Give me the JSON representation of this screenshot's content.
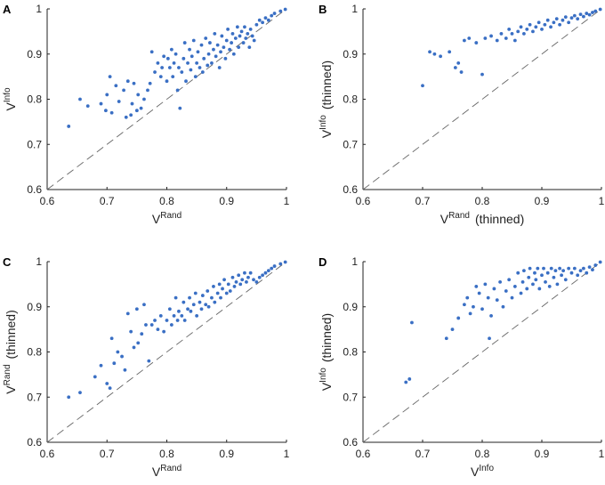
{
  "colors": {
    "points": "#3a6fc4",
    "axes": "#222222",
    "diagonal": "#666666"
  },
  "chart_data": [
    {
      "type": "scatter",
      "panel_label": "A",
      "xlabel": {
        "base": "V",
        "sup": "Rand",
        "suffix": ""
      },
      "ylabel": {
        "base": "V",
        "sup": "Info",
        "suffix": ""
      },
      "xlim": [
        0.6,
        1
      ],
      "ylim": [
        0.6,
        1
      ],
      "xticks": [
        "0.6",
        "0.7",
        "0.8",
        "0.9",
        "1"
      ],
      "yticks": [
        "0.6",
        "0.7",
        "0.8",
        "0.9",
        "1"
      ],
      "reference_line": "y = x (dashed)",
      "points": [
        [
          0.636,
          0.74
        ],
        [
          0.655,
          0.8
        ],
        [
          0.668,
          0.785
        ],
        [
          0.69,
          0.79
        ],
        [
          0.698,
          0.775
        ],
        [
          0.7,
          0.81
        ],
        [
          0.705,
          0.85
        ],
        [
          0.708,
          0.77
        ],
        [
          0.715,
          0.83
        ],
        [
          0.72,
          0.795
        ],
        [
          0.728,
          0.82
        ],
        [
          0.732,
          0.76
        ],
        [
          0.735,
          0.84
        ],
        [
          0.74,
          0.765
        ],
        [
          0.742,
          0.79
        ],
        [
          0.745,
          0.835
        ],
        [
          0.75,
          0.775
        ],
        [
          0.752,
          0.81
        ],
        [
          0.757,
          0.78
        ],
        [
          0.762,
          0.8
        ],
        [
          0.768,
          0.82
        ],
        [
          0.772,
          0.835
        ],
        [
          0.775,
          0.905
        ],
        [
          0.78,
          0.86
        ],
        [
          0.785,
          0.88
        ],
        [
          0.79,
          0.85
        ],
        [
          0.792,
          0.87
        ],
        [
          0.795,
          0.895
        ],
        [
          0.8,
          0.84
        ],
        [
          0.802,
          0.89
        ],
        [
          0.805,
          0.87
        ],
        [
          0.808,
          0.91
        ],
        [
          0.81,
          0.85
        ],
        [
          0.812,
          0.88
        ],
        [
          0.815,
          0.9
        ],
        [
          0.818,
          0.82
        ],
        [
          0.82,
          0.87
        ],
        [
          0.822,
          0.78
        ],
        [
          0.825,
          0.86
        ],
        [
          0.828,
          0.89
        ],
        [
          0.83,
          0.925
        ],
        [
          0.832,
          0.84
        ],
        [
          0.835,
          0.88
        ],
        [
          0.838,
          0.91
        ],
        [
          0.84,
          0.865
        ],
        [
          0.842,
          0.895
        ],
        [
          0.845,
          0.93
        ],
        [
          0.848,
          0.85
        ],
        [
          0.85,
          0.88
        ],
        [
          0.852,
          0.905
        ],
        [
          0.855,
          0.87
        ],
        [
          0.858,
          0.92
        ],
        [
          0.86,
          0.86
        ],
        [
          0.862,
          0.89
        ],
        [
          0.865,
          0.935
        ],
        [
          0.868,
          0.875
        ],
        [
          0.87,
          0.9
        ],
        [
          0.872,
          0.925
        ],
        [
          0.875,
          0.88
        ],
        [
          0.878,
          0.91
        ],
        [
          0.88,
          0.945
        ],
        [
          0.882,
          0.895
        ],
        [
          0.885,
          0.92
        ],
        [
          0.888,
          0.87
        ],
        [
          0.89,
          0.905
        ],
        [
          0.892,
          0.94
        ],
        [
          0.895,
          0.915
        ],
        [
          0.898,
          0.89
        ],
        [
          0.9,
          0.93
        ],
        [
          0.902,
          0.955
        ],
        [
          0.905,
          0.91
        ],
        [
          0.908,
          0.925
        ],
        [
          0.91,
          0.945
        ],
        [
          0.912,
          0.9
        ],
        [
          0.915,
          0.935
        ],
        [
          0.918,
          0.96
        ],
        [
          0.92,
          0.915
        ],
        [
          0.922,
          0.94
        ],
        [
          0.925,
          0.95
        ],
        [
          0.928,
          0.925
        ],
        [
          0.93,
          0.96
        ],
        [
          0.932,
          0.935
        ],
        [
          0.935,
          0.945
        ],
        [
          0.938,
          0.915
        ],
        [
          0.94,
          0.955
        ],
        [
          0.943,
          0.94
        ],
        [
          0.946,
          0.93
        ],
        [
          0.95,
          0.965
        ],
        [
          0.955,
          0.975
        ],
        [
          0.96,
          0.97
        ],
        [
          0.965,
          0.98
        ],
        [
          0.97,
          0.975
        ],
        [
          0.975,
          0.985
        ],
        [
          0.98,
          0.99
        ],
        [
          0.99,
          0.995
        ],
        [
          0.998,
          0.999
        ]
      ]
    },
    {
      "type": "scatter",
      "panel_label": "B",
      "xlabel": {
        "base": "V",
        "sup": "Rand",
        "suffix": "(thinned)"
      },
      "ylabel": {
        "base": "V",
        "sup": "Info",
        "suffix": "(thinned)"
      },
      "xlim": [
        0.6,
        1
      ],
      "ylim": [
        0.6,
        1
      ],
      "xticks": [
        "0.6",
        "0.7",
        "0.8",
        "0.9",
        "1"
      ],
      "yticks": [
        "0.6",
        "0.7",
        "0.8",
        "0.9",
        "1"
      ],
      "reference_line": "y = x (dashed)",
      "points": [
        [
          0.7,
          0.83
        ],
        [
          0.712,
          0.905
        ],
        [
          0.72,
          0.9
        ],
        [
          0.73,
          0.895
        ],
        [
          0.745,
          0.905
        ],
        [
          0.755,
          0.87
        ],
        [
          0.76,
          0.88
        ],
        [
          0.765,
          0.86
        ],
        [
          0.77,
          0.93
        ],
        [
          0.778,
          0.935
        ],
        [
          0.79,
          0.925
        ],
        [
          0.8,
          0.855
        ],
        [
          0.805,
          0.935
        ],
        [
          0.815,
          0.94
        ],
        [
          0.825,
          0.93
        ],
        [
          0.832,
          0.945
        ],
        [
          0.84,
          0.935
        ],
        [
          0.845,
          0.955
        ],
        [
          0.85,
          0.945
        ],
        [
          0.855,
          0.93
        ],
        [
          0.86,
          0.95
        ],
        [
          0.865,
          0.96
        ],
        [
          0.87,
          0.945
        ],
        [
          0.875,
          0.955
        ],
        [
          0.88,
          0.965
        ],
        [
          0.885,
          0.95
        ],
        [
          0.89,
          0.96
        ],
        [
          0.895,
          0.97
        ],
        [
          0.9,
          0.955
        ],
        [
          0.905,
          0.965
        ],
        [
          0.91,
          0.975
        ],
        [
          0.915,
          0.96
        ],
        [
          0.92,
          0.97
        ],
        [
          0.925,
          0.978
        ],
        [
          0.93,
          0.965
        ],
        [
          0.935,
          0.975
        ],
        [
          0.94,
          0.982
        ],
        [
          0.945,
          0.97
        ],
        [
          0.95,
          0.98
        ],
        [
          0.955,
          0.985
        ],
        [
          0.96,
          0.978
        ],
        [
          0.965,
          0.988
        ],
        [
          0.97,
          0.983
        ],
        [
          0.975,
          0.99
        ],
        [
          0.98,
          0.987
        ],
        [
          0.985,
          0.992
        ],
        [
          0.99,
          0.995
        ],
        [
          0.998,
          0.999
        ]
      ]
    },
    {
      "type": "scatter",
      "panel_label": "C",
      "xlabel": {
        "base": "V",
        "sup": "Rand",
        "suffix": ""
      },
      "ylabel": {
        "base": "V",
        "sup": "Rand",
        "suffix": "(thinned)"
      },
      "xlim": [
        0.6,
        1
      ],
      "ylim": [
        0.6,
        1
      ],
      "xticks": [
        "0.6",
        "0.7",
        "0.8",
        "0.9",
        "1"
      ],
      "yticks": [
        "0.6",
        "0.7",
        "0.8",
        "0.9",
        "1"
      ],
      "reference_line": "y = x (dashed)",
      "points": [
        [
          0.636,
          0.7
        ],
        [
          0.655,
          0.71
        ],
        [
          0.68,
          0.745
        ],
        [
          0.69,
          0.77
        ],
        [
          0.7,
          0.73
        ],
        [
          0.705,
          0.72
        ],
        [
          0.708,
          0.83
        ],
        [
          0.712,
          0.775
        ],
        [
          0.718,
          0.8
        ],
        [
          0.725,
          0.79
        ],
        [
          0.73,
          0.76
        ],
        [
          0.735,
          0.885
        ],
        [
          0.74,
          0.845
        ],
        [
          0.745,
          0.81
        ],
        [
          0.75,
          0.895
        ],
        [
          0.752,
          0.82
        ],
        [
          0.758,
          0.84
        ],
        [
          0.762,
          0.905
        ],
        [
          0.765,
          0.86
        ],
        [
          0.77,
          0.78
        ],
        [
          0.775,
          0.86
        ],
        [
          0.78,
          0.87
        ],
        [
          0.785,
          0.85
        ],
        [
          0.79,
          0.88
        ],
        [
          0.795,
          0.845
        ],
        [
          0.8,
          0.87
        ],
        [
          0.805,
          0.895
        ],
        [
          0.808,
          0.86
        ],
        [
          0.812,
          0.88
        ],
        [
          0.815,
          0.92
        ],
        [
          0.818,
          0.87
        ],
        [
          0.82,
          0.89
        ],
        [
          0.825,
          0.88
        ],
        [
          0.828,
          0.91
        ],
        [
          0.83,
          0.87
        ],
        [
          0.835,
          0.895
        ],
        [
          0.838,
          0.92
        ],
        [
          0.84,
          0.89
        ],
        [
          0.845,
          0.905
        ],
        [
          0.848,
          0.93
        ],
        [
          0.85,
          0.88
        ],
        [
          0.855,
          0.91
        ],
        [
          0.858,
          0.895
        ],
        [
          0.86,
          0.925
        ],
        [
          0.865,
          0.905
        ],
        [
          0.868,
          0.935
        ],
        [
          0.87,
          0.9
        ],
        [
          0.875,
          0.92
        ],
        [
          0.878,
          0.945
        ],
        [
          0.88,
          0.91
        ],
        [
          0.885,
          0.93
        ],
        [
          0.888,
          0.95
        ],
        [
          0.89,
          0.92
        ],
        [
          0.893,
          0.94
        ],
        [
          0.896,
          0.96
        ],
        [
          0.9,
          0.93
        ],
        [
          0.903,
          0.95
        ],
        [
          0.906,
          0.935
        ],
        [
          0.91,
          0.965
        ],
        [
          0.913,
          0.945
        ],
        [
          0.916,
          0.955
        ],
        [
          0.92,
          0.97
        ],
        [
          0.923,
          0.95
        ],
        [
          0.926,
          0.96
        ],
        [
          0.93,
          0.975
        ],
        [
          0.933,
          0.955
        ],
        [
          0.936,
          0.965
        ],
        [
          0.94,
          0.975
        ],
        [
          0.945,
          0.96
        ],
        [
          0.95,
          0.955
        ],
        [
          0.955,
          0.965
        ],
        [
          0.96,
          0.97
        ],
        [
          0.965,
          0.975
        ],
        [
          0.97,
          0.98
        ],
        [
          0.975,
          0.985
        ],
        [
          0.98,
          0.99
        ],
        [
          0.99,
          0.995
        ],
        [
          0.998,
          0.999
        ]
      ]
    },
    {
      "type": "scatter",
      "panel_label": "D",
      "xlabel": {
        "base": "V",
        "sup": "Info",
        "suffix": ""
      },
      "ylabel": {
        "base": "V",
        "sup": "Info",
        "suffix": "(thinned)"
      },
      "xlim": [
        0.6,
        1
      ],
      "ylim": [
        0.6,
        1
      ],
      "xticks": [
        "0.6",
        "0.7",
        "0.8",
        "0.9",
        "1"
      ],
      "yticks": [
        "0.6",
        "0.7",
        "0.8",
        "0.9",
        "1"
      ],
      "reference_line": "y = x (dashed)",
      "points": [
        [
          0.672,
          0.733
        ],
        [
          0.678,
          0.74
        ],
        [
          0.682,
          0.865
        ],
        [
          0.74,
          0.83
        ],
        [
          0.75,
          0.85
        ],
        [
          0.76,
          0.875
        ],
        [
          0.77,
          0.905
        ],
        [
          0.775,
          0.92
        ],
        [
          0.78,
          0.885
        ],
        [
          0.785,
          0.9
        ],
        [
          0.79,
          0.945
        ],
        [
          0.795,
          0.93
        ],
        [
          0.8,
          0.895
        ],
        [
          0.805,
          0.95
        ],
        [
          0.81,
          0.92
        ],
        [
          0.812,
          0.83
        ],
        [
          0.815,
          0.88
        ],
        [
          0.82,
          0.94
        ],
        [
          0.825,
          0.915
        ],
        [
          0.83,
          0.955
        ],
        [
          0.835,
          0.9
        ],
        [
          0.84,
          0.935
        ],
        [
          0.845,
          0.96
        ],
        [
          0.85,
          0.92
        ],
        [
          0.855,
          0.945
        ],
        [
          0.86,
          0.975
        ],
        [
          0.865,
          0.93
        ],
        [
          0.868,
          0.955
        ],
        [
          0.87,
          0.98
        ],
        [
          0.875,
          0.94
        ],
        [
          0.878,
          0.965
        ],
        [
          0.88,
          0.985
        ],
        [
          0.885,
          0.95
        ],
        [
          0.888,
          0.975
        ],
        [
          0.89,
          0.96
        ],
        [
          0.893,
          0.985
        ],
        [
          0.896,
          0.94
        ],
        [
          0.9,
          0.97
        ],
        [
          0.903,
          0.985
        ],
        [
          0.906,
          0.955
        ],
        [
          0.91,
          0.975
        ],
        [
          0.913,
          0.945
        ],
        [
          0.916,
          0.985
        ],
        [
          0.92,
          0.965
        ],
        [
          0.923,
          0.98
        ],
        [
          0.926,
          0.95
        ],
        [
          0.93,
          0.985
        ],
        [
          0.933,
          0.97
        ],
        [
          0.936,
          0.98
        ],
        [
          0.94,
          0.96
        ],
        [
          0.945,
          0.985
        ],
        [
          0.95,
          0.975
        ],
        [
          0.955,
          0.985
        ],
        [
          0.96,
          0.97
        ],
        [
          0.965,
          0.98
        ],
        [
          0.97,
          0.985
        ],
        [
          0.975,
          0.975
        ],
        [
          0.98,
          0.988
        ],
        [
          0.985,
          0.982
        ],
        [
          0.99,
          0.992
        ],
        [
          0.998,
          0.999
        ]
      ]
    }
  ]
}
